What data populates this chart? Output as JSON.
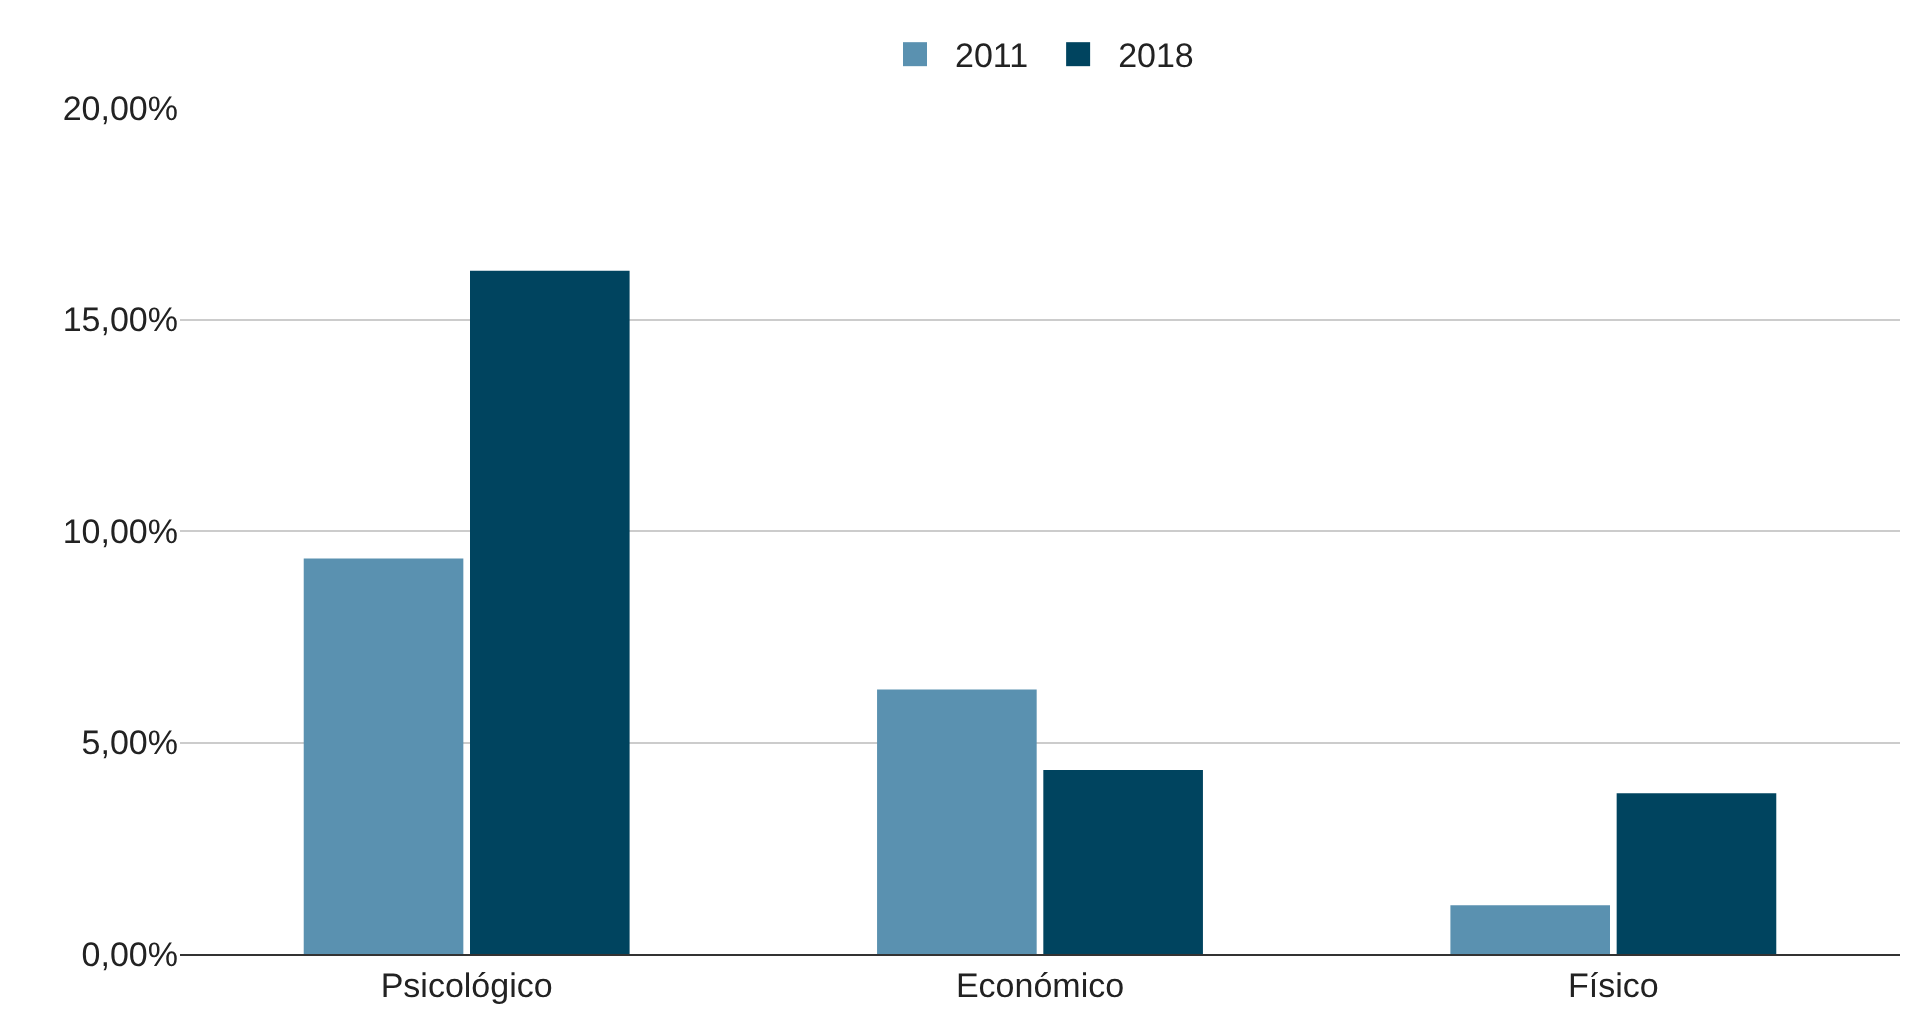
{
  "chart_data": {
    "type": "bar",
    "categories": [
      "Psicológico",
      "Económico",
      "Físico"
    ],
    "series": [
      {
        "name": "2011",
        "color": "#5a91b0",
        "values": [
          9.35,
          6.25,
          1.15
        ]
      },
      {
        "name": "2018",
        "color": "#00445f",
        "values": [
          16.15,
          4.35,
          3.8
        ]
      }
    ],
    "ylim": [
      0,
      20
    ],
    "yticks": [
      {
        "value": 0,
        "label": "0,00%"
      },
      {
        "value": 5,
        "label": "5,00%"
      },
      {
        "value": 10,
        "label": "10,00%"
      },
      {
        "value": 15,
        "label": "15,00%"
      },
      {
        "value": 20,
        "label": "20,00%"
      }
    ],
    "grid": "y",
    "legend": "top"
  }
}
